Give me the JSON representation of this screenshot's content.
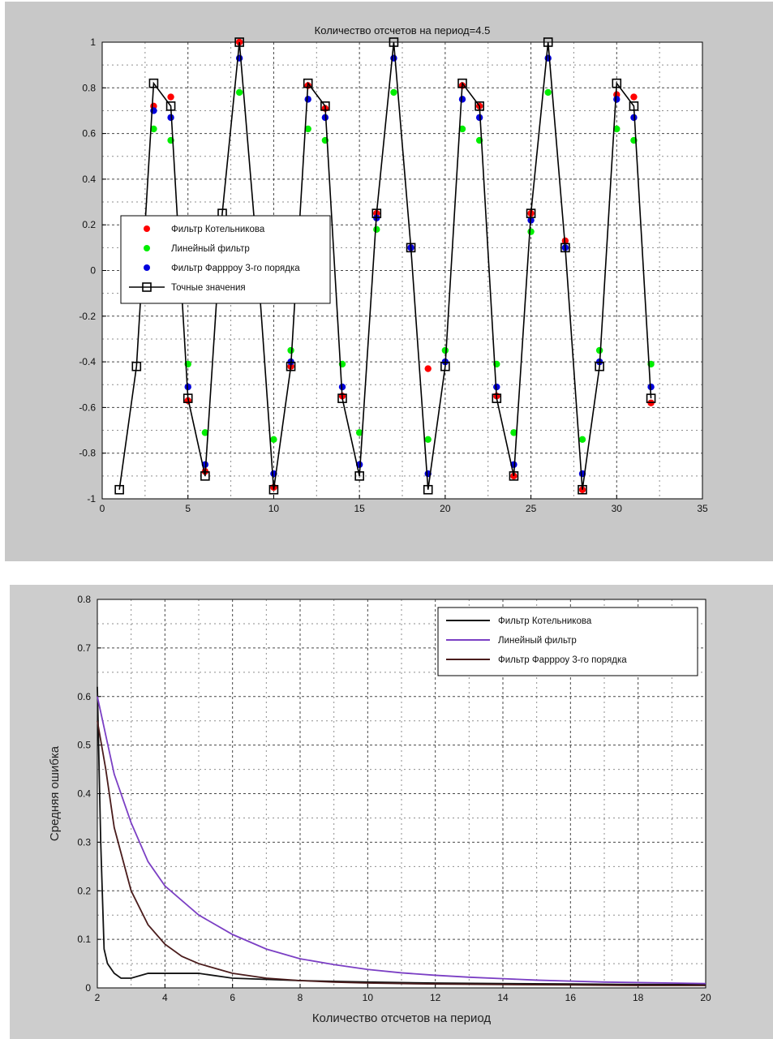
{
  "chart_data": [
    {
      "type": "line",
      "title": "Количество отсчетов на период=4.5",
      "xlabel": "",
      "ylabel": "",
      "xlim": [
        0,
        35
      ],
      "ylim": [
        -1,
        1
      ],
      "xticks": [
        "0",
        "5",
        "10",
        "15",
        "20",
        "25",
        "30",
        "35"
      ],
      "yticks": [
        "1",
        "0.8",
        "0.6",
        "0.4",
        "0.2",
        "0",
        "-0.2",
        "-0.4",
        "-0.6",
        "-0.8",
        "-1"
      ],
      "grid": true,
      "legend_position": "left-middle",
      "series": [
        {
          "name": "Фильтр Котельникова",
          "color": "#ff0000",
          "marker": "dot",
          "x": [
            3,
            4,
            5,
            6,
            8,
            10,
            11,
            12,
            13,
            14,
            16,
            18,
            19,
            21,
            22,
            23,
            24,
            25,
            27,
            28,
            30,
            31,
            32
          ],
          "y": [
            0.72,
            0.76,
            -0.57,
            -0.88,
            1.0,
            -0.95,
            -0.42,
            0.81,
            0.71,
            -0.55,
            0.25,
            0.1,
            -0.43,
            0.81,
            0.72,
            -0.55,
            -0.9,
            0.25,
            0.13,
            -0.96,
            0.77,
            0.76,
            -0.58
          ]
        },
        {
          "name": "Линейный фильтр",
          "color": "#00ee00",
          "marker": "dot",
          "x": [
            3,
            4,
            5,
            6,
            8,
            10,
            11,
            12,
            13,
            14,
            15,
            16,
            17,
            19,
            20,
            21,
            22,
            23,
            24,
            25,
            26,
            28,
            29,
            30,
            31,
            32
          ],
          "y": [
            0.62,
            0.57,
            -0.41,
            -0.71,
            0.78,
            -0.74,
            -0.35,
            0.62,
            0.57,
            -0.41,
            -0.71,
            0.18,
            0.78,
            -0.74,
            -0.35,
            0.62,
            0.57,
            -0.41,
            -0.71,
            0.17,
            0.78,
            -0.74,
            -0.35,
            0.62,
            0.57,
            -0.41
          ]
        },
        {
          "name": "Фильтр Фаррроу 3-го порядка",
          "color": "#0000dd",
          "marker": "dot",
          "x": [
            3,
            4,
            5,
            6,
            8,
            10,
            11,
            12,
            13,
            14,
            15,
            16,
            17,
            18,
            19,
            20,
            21,
            22,
            23,
            24,
            25,
            26,
            27,
            28,
            29,
            30,
            31,
            32
          ],
          "y": [
            0.7,
            0.67,
            -0.51,
            -0.85,
            0.93,
            -0.89,
            -0.4,
            0.75,
            0.67,
            -0.51,
            -0.85,
            0.23,
            0.93,
            0.1,
            -0.89,
            -0.4,
            0.75,
            0.67,
            -0.51,
            -0.85,
            0.22,
            0.93,
            0.1,
            -0.89,
            -0.4,
            0.75,
            0.67,
            -0.51
          ]
        },
        {
          "name": "Точные значения",
          "color": "#000000",
          "marker": "square",
          "x": [
            1,
            2,
            3,
            4,
            5,
            6,
            7,
            8,
            9,
            10,
            11,
            12,
            13,
            14,
            15,
            16,
            17,
            18,
            19,
            20,
            21,
            22,
            23,
            24,
            25,
            26,
            27,
            28,
            29,
            30,
            31,
            32
          ],
          "y": [
            -0.96,
            -0.42,
            0.82,
            0.72,
            -0.56,
            -0.9,
            0.25,
            1.0,
            0.1,
            -0.96,
            -0.42,
            0.82,
            0.72,
            -0.56,
            -0.9,
            0.25,
            1.0,
            0.1,
            -0.96,
            -0.42,
            0.82,
            0.72,
            -0.56,
            -0.9,
            0.25,
            1.0,
            0.1,
            -0.96,
            -0.42,
            0.82,
            0.72,
            -0.56
          ]
        }
      ]
    },
    {
      "type": "line",
      "title": "",
      "xlabel": "Количество отсчетов на период",
      "ylabel": "Средняя ошибка",
      "xlim": [
        2,
        20
      ],
      "ylim": [
        0,
        0.8
      ],
      "xticks": [
        "2",
        "4",
        "6",
        "8",
        "10",
        "12",
        "14",
        "16",
        "18",
        "20"
      ],
      "yticks": [
        "0.8",
        "0.7",
        "0.6",
        "0.5",
        "0.4",
        "0.3",
        "0.2",
        "0.1",
        "0"
      ],
      "grid": true,
      "legend_position": "top-right",
      "series": [
        {
          "name": "Фильтр Котельникова",
          "color": "#111111",
          "x": [
            2,
            2.1,
            2.2,
            2.3,
            2.5,
            2.7,
            3.0,
            3.5,
            4,
            5,
            6,
            8,
            10,
            12,
            14,
            16,
            18,
            20
          ],
          "y": [
            0.62,
            0.3,
            0.08,
            0.05,
            0.03,
            0.02,
            0.02,
            0.03,
            0.03,
            0.03,
            0.02,
            0.015,
            0.012,
            0.01,
            0.009,
            0.008,
            0.007,
            0.007
          ]
        },
        {
          "name": "Линейный фильтр",
          "color": "#7b3fc4",
          "x": [
            2,
            2.25,
            2.5,
            3,
            3.5,
            4,
            5,
            6,
            7,
            8,
            9,
            10,
            11,
            12,
            13,
            14,
            15,
            16,
            17,
            18,
            19,
            20
          ],
          "y": [
            0.6,
            0.52,
            0.44,
            0.34,
            0.26,
            0.21,
            0.15,
            0.11,
            0.08,
            0.06,
            0.048,
            0.038,
            0.031,
            0.026,
            0.022,
            0.019,
            0.016,
            0.014,
            0.012,
            0.011,
            0.01,
            0.009
          ]
        },
        {
          "name": "Фильтр Фаррроу 3-го порядка",
          "color": "#4a1c1c",
          "x": [
            2,
            2.25,
            2.5,
            3,
            3.5,
            4,
            4.5,
            5,
            6,
            7,
            8,
            9,
            10,
            12,
            14,
            16,
            18,
            20
          ],
          "y": [
            0.55,
            0.45,
            0.33,
            0.2,
            0.13,
            0.09,
            0.065,
            0.05,
            0.03,
            0.02,
            0.015,
            0.012,
            0.01,
            0.008,
            0.007,
            0.006,
            0.005,
            0.005
          ]
        }
      ]
    }
  ]
}
